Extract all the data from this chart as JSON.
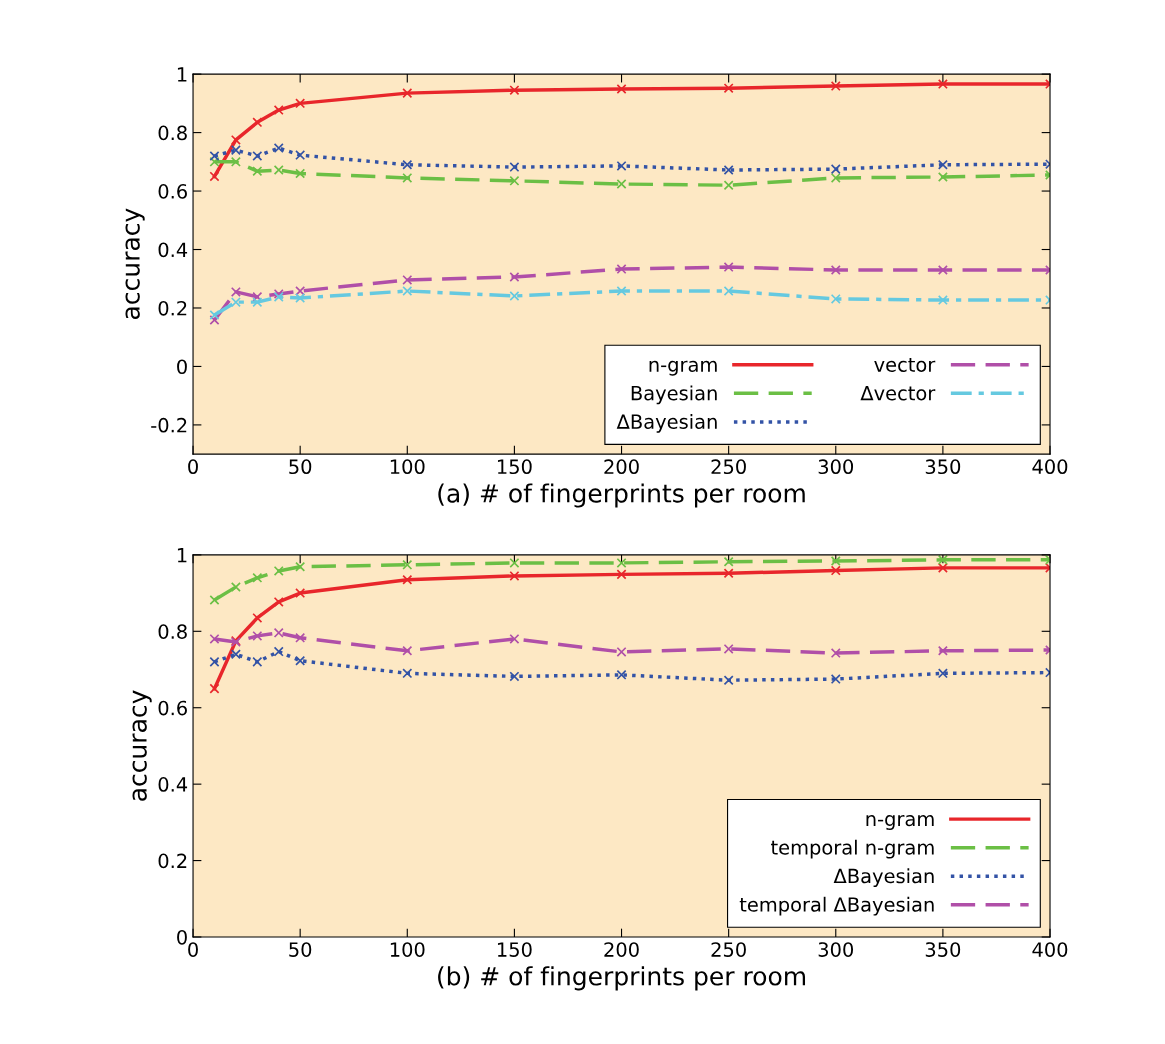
{
  "chart_data": [
    {
      "type": "line",
      "xlabel": "(a) # of fingerprints per room",
      "ylabel": "accuracy",
      "x": [
        10,
        20,
        30,
        40,
        50,
        100,
        150,
        200,
        250,
        300,
        350,
        400
      ],
      "xlim": [
        0,
        400
      ],
      "xticks": [
        0,
        50,
        100,
        150,
        200,
        250,
        300,
        350,
        400
      ],
      "ylim": [
        -0.3,
        1
      ],
      "yticks": [
        -0.2,
        0,
        0.2,
        0.4,
        0.6,
        0.8,
        1
      ],
      "grid": false,
      "legend": "bottom right",
      "marker": "cross",
      "series": [
        {
          "name": "n-gram",
          "color": "#e8262b",
          "line_style": "solid",
          "values": [
            0.65,
            0.775,
            0.835,
            0.877,
            0.9,
            0.935,
            0.945,
            0.949,
            0.952,
            0.959,
            0.966,
            0.966
          ]
        },
        {
          "name": "Bayesian",
          "color": "#6bbf45",
          "line_style": "dashed",
          "values": [
            0.7,
            0.7,
            0.668,
            0.672,
            0.66,
            0.645,
            0.635,
            0.624,
            0.62,
            0.645,
            0.648,
            0.655
          ]
        },
        {
          "name": "ΔBayesian",
          "color": "#3353a6",
          "line_style": "dotted",
          "values": [
            0.72,
            0.74,
            0.72,
            0.747,
            0.723,
            0.69,
            0.682,
            0.686,
            0.672,
            0.675,
            0.69,
            0.692
          ]
        },
        {
          "name": "vector",
          "color": "#b04fa8",
          "line_style": "dashed",
          "values": [
            0.159,
            0.255,
            0.238,
            0.248,
            0.258,
            0.296,
            0.306,
            0.333,
            0.34,
            0.33,
            0.33,
            0.33
          ]
        },
        {
          "name": "Δvector",
          "color": "#65c9e0",
          "line_style": "dashdot",
          "values": [
            0.176,
            0.22,
            0.22,
            0.238,
            0.234,
            0.258,
            0.241,
            0.258,
            0.258,
            0.231,
            0.227,
            0.227
          ]
        }
      ]
    },
    {
      "type": "line",
      "xlabel": "(b) # of fingerprints per room",
      "ylabel": "accuracy",
      "x": [
        10,
        20,
        30,
        40,
        50,
        100,
        150,
        200,
        250,
        300,
        350,
        400
      ],
      "xlim": [
        0,
        400
      ],
      "xticks": [
        0,
        50,
        100,
        150,
        200,
        250,
        300,
        350,
        400
      ],
      "ylim": [
        0,
        1
      ],
      "yticks": [
        0,
        0.2,
        0.4,
        0.6,
        0.8,
        1
      ],
      "grid": false,
      "legend": "bottom right",
      "marker": "cross",
      "series": [
        {
          "name": "n-gram",
          "color": "#e8262b",
          "line_style": "solid",
          "values": [
            0.65,
            0.775,
            0.835,
            0.877,
            0.9,
            0.935,
            0.945,
            0.949,
            0.952,
            0.959,
            0.966,
            0.966
          ]
        },
        {
          "name": "temporal n-gram",
          "color": "#6bbf45",
          "line_style": "dashed",
          "values": [
            0.882,
            0.916,
            0.94,
            0.958,
            0.969,
            0.974,
            0.979,
            0.979,
            0.982,
            0.984,
            0.987,
            0.987
          ]
        },
        {
          "name": "ΔBayesian",
          "color": "#3353a6",
          "line_style": "dotted",
          "values": [
            0.72,
            0.74,
            0.72,
            0.747,
            0.723,
            0.69,
            0.682,
            0.686,
            0.672,
            0.675,
            0.69,
            0.692
          ]
        },
        {
          "name": "temporal ΔBayesian",
          "color": "#b04fa8",
          "line_style": "dashed",
          "values": [
            0.78,
            0.772,
            0.788,
            0.796,
            0.783,
            0.749,
            0.78,
            0.746,
            0.754,
            0.743,
            0.749,
            0.751
          ]
        }
      ]
    }
  ]
}
